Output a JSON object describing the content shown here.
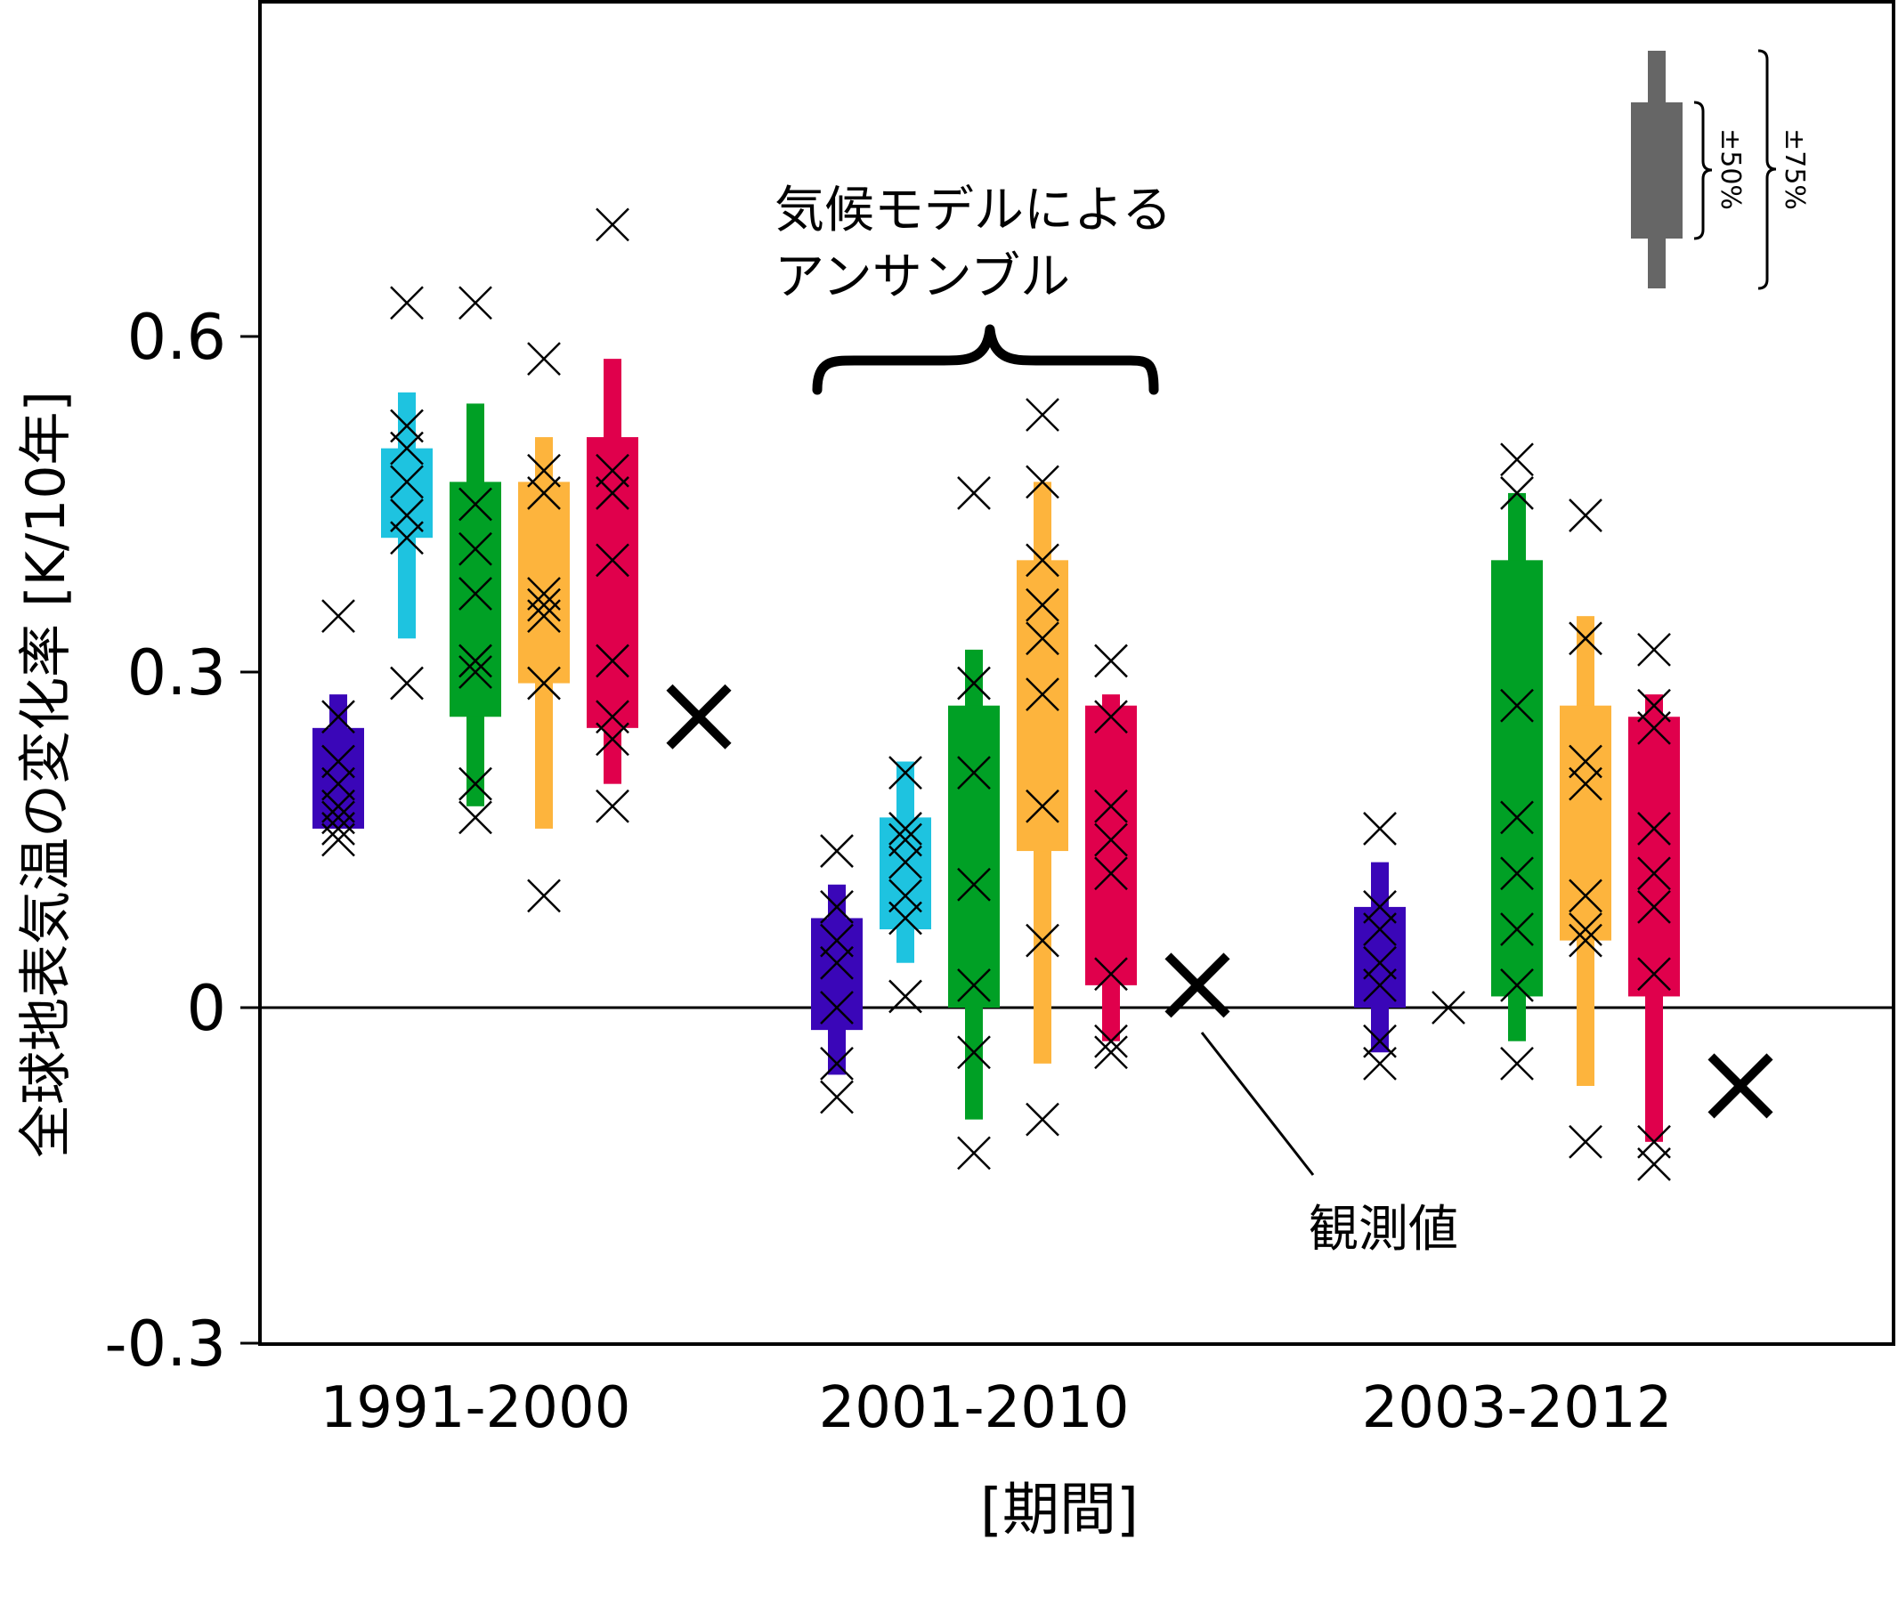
{
  "chart_data": {
    "type": "boxplot",
    "ylabel": "全球地表気温の変化率 [K/10年]",
    "xlabel": "[期間]",
    "ylim": [
      -0.3,
      0.9
    ],
    "yticks": [
      {
        "value": 0.6,
        "label": "0.6"
      },
      {
        "value": 0.3,
        "label": "0.3"
      },
      {
        "value": 0.0,
        "label": "0"
      },
      {
        "value": -0.3,
        "label": "-0.3"
      }
    ],
    "zero_line": true,
    "series_colors": [
      "#3a06b8",
      "#1ec3e0",
      "#00a025",
      "#fdb43d",
      "#e0004c"
    ],
    "observed_color": "#000000",
    "annotations": {
      "ensemble_label_line1": "気候モデルによる",
      "ensemble_label_line2": "アンサンブル",
      "observed_label": "観測値"
    },
    "legend": {
      "label_50": "±50%",
      "label_75": "±75%",
      "color": "#666666"
    },
    "periods": [
      {
        "label": "1991-2000",
        "observed": 0.26,
        "boxes": [
          {
            "q75": [
              0.16,
              0.28
            ],
            "q50": [
              0.16,
              0.25
            ],
            "members": [
              0.15,
              0.16,
              0.17,
              0.18,
              0.2,
              0.22,
              0.26,
              0.35
            ]
          },
          {
            "q75": [
              0.33,
              0.55
            ],
            "q50": [
              0.42,
              0.5
            ],
            "members": [
              0.29,
              0.42,
              0.44,
              0.47,
              0.5,
              0.52,
              0.63
            ]
          },
          {
            "q75": [
              0.18,
              0.54
            ],
            "q50": [
              0.26,
              0.47
            ],
            "members": [
              0.17,
              0.2,
              0.3,
              0.31,
              0.37,
              0.41,
              0.45,
              0.63
            ]
          },
          {
            "q75": [
              0.16,
              0.51
            ],
            "q50": [
              0.29,
              0.47
            ],
            "members": [
              0.1,
              0.29,
              0.35,
              0.36,
              0.37,
              0.46,
              0.48,
              0.58
            ]
          },
          {
            "q75": [
              0.2,
              0.58
            ],
            "q50": [
              0.25,
              0.51
            ],
            "members": [
              0.18,
              0.24,
              0.26,
              0.31,
              0.4,
              0.46,
              0.48,
              0.7
            ]
          }
        ]
      },
      {
        "label": "2001-2010",
        "observed": 0.02,
        "boxes": [
          {
            "q75": [
              -0.06,
              0.11
            ],
            "q50": [
              -0.02,
              0.08
            ],
            "members": [
              -0.08,
              -0.05,
              0.0,
              0.04,
              0.06,
              0.09,
              0.14
            ]
          },
          {
            "q75": [
              0.04,
              0.22
            ],
            "q50": [
              0.07,
              0.17
            ],
            "members": [
              0.01,
              0.08,
              0.1,
              0.13,
              0.15,
              0.16,
              0.21
            ]
          },
          {
            "q75": [
              -0.1,
              0.32
            ],
            "q50": [
              0.0,
              0.27
            ],
            "members": [
              -0.13,
              -0.04,
              0.02,
              0.11,
              0.21,
              0.29,
              0.46
            ]
          },
          {
            "q75": [
              -0.05,
              0.47
            ],
            "q50": [
              0.14,
              0.4
            ],
            "members": [
              -0.1,
              0.06,
              0.18,
              0.28,
              0.33,
              0.36,
              0.4,
              0.47,
              0.53
            ]
          },
          {
            "q75": [
              -0.03,
              0.28
            ],
            "q50": [
              0.02,
              0.27
            ],
            "members": [
              -0.04,
              -0.03,
              0.03,
              0.12,
              0.15,
              0.18,
              0.26,
              0.31
            ]
          }
        ]
      },
      {
        "label": "2003-2012",
        "observed": -0.07,
        "boxes": [
          {
            "q75": [
              -0.04,
              0.13
            ],
            "q50": [
              0.0,
              0.09
            ],
            "members": [
              -0.05,
              -0.03,
              0.02,
              0.04,
              0.07,
              0.09,
              0.16
            ]
          },
          {
            "q75": null,
            "q50": null,
            "members": [
              0.0
            ]
          },
          {
            "q75": [
              -0.03,
              0.46
            ],
            "q50": [
              0.01,
              0.4
            ],
            "members": [
              -0.05,
              0.02,
              0.07,
              0.12,
              0.17,
              0.27,
              0.46,
              0.49
            ]
          },
          {
            "q75": [
              -0.07,
              0.35
            ],
            "q50": [
              0.06,
              0.27
            ],
            "members": [
              -0.12,
              0.06,
              0.07,
              0.1,
              0.2,
              0.22,
              0.33,
              0.44
            ]
          },
          {
            "q75": [
              -0.12,
              0.28
            ],
            "q50": [
              0.01,
              0.26
            ],
            "members": [
              -0.14,
              -0.12,
              0.03,
              0.09,
              0.12,
              0.16,
              0.25,
              0.27,
              0.32
            ]
          }
        ]
      }
    ]
  }
}
